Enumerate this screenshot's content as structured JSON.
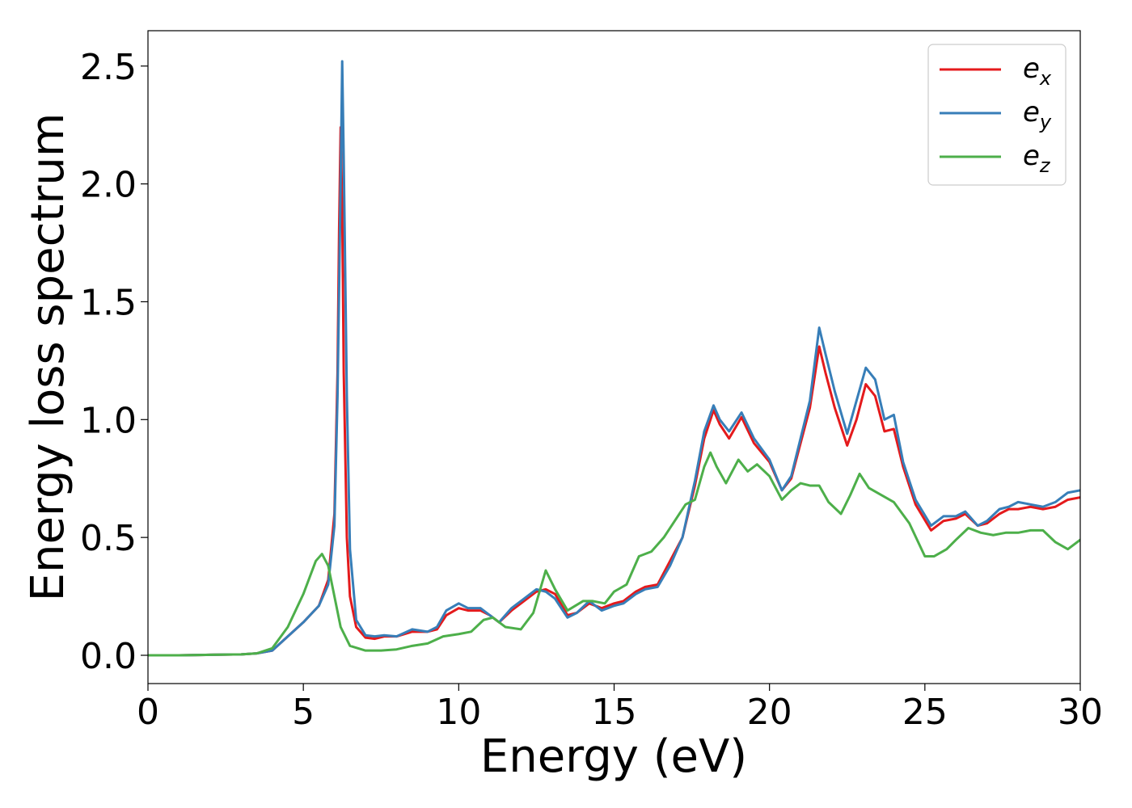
{
  "chart_data": {
    "type": "line",
    "xlabel": "Energy (eV)",
    "ylabel": "Energy loss spectrum",
    "xlim": [
      0,
      30
    ],
    "ylim": [
      -0.12,
      2.65
    ],
    "xticks": [
      0,
      5,
      10,
      15,
      20,
      25,
      30
    ],
    "yticks": [
      0.0,
      0.5,
      1.0,
      1.5,
      2.0,
      2.5
    ],
    "xtick_labels": [
      "0",
      "5",
      "10",
      "15",
      "20",
      "25",
      "30"
    ],
    "ytick_labels": [
      "0.0",
      "0.5",
      "1.0",
      "1.5",
      "2.0",
      "2.5"
    ],
    "grid": false,
    "legend_position": "top-right",
    "series": [
      {
        "name": "e_x",
        "label_base": "e",
        "label_sub": "x",
        "color": "#e41a1c",
        "points": [
          [
            0,
            0.0
          ],
          [
            1,
            0.0
          ],
          [
            2,
            0.002
          ],
          [
            3,
            0.004
          ],
          [
            3.5,
            0.008
          ],
          [
            4,
            0.02
          ],
          [
            4.5,
            0.08
          ],
          [
            5,
            0.14
          ],
          [
            5.5,
            0.21
          ],
          [
            5.8,
            0.32
          ],
          [
            6.0,
            0.6
          ],
          [
            6.1,
            1.2
          ],
          [
            6.15,
            1.8
          ],
          [
            6.2,
            2.24
          ],
          [
            6.25,
            1.9
          ],
          [
            6.3,
            1.2
          ],
          [
            6.4,
            0.5
          ],
          [
            6.5,
            0.25
          ],
          [
            6.7,
            0.12
          ],
          [
            7,
            0.075
          ],
          [
            7.3,
            0.07
          ],
          [
            7.6,
            0.08
          ],
          [
            8,
            0.08
          ],
          [
            8.5,
            0.1
          ],
          [
            9,
            0.1
          ],
          [
            9.3,
            0.11
          ],
          [
            9.6,
            0.17
          ],
          [
            10,
            0.2
          ],
          [
            10.3,
            0.19
          ],
          [
            10.7,
            0.19
          ],
          [
            11,
            0.17
          ],
          [
            11.3,
            0.14
          ],
          [
            11.7,
            0.19
          ],
          [
            12,
            0.22
          ],
          [
            12.5,
            0.27
          ],
          [
            12.8,
            0.28
          ],
          [
            13.1,
            0.26
          ],
          [
            13.5,
            0.17
          ],
          [
            13.8,
            0.18
          ],
          [
            14.2,
            0.22
          ],
          [
            14.6,
            0.2
          ],
          [
            15,
            0.22
          ],
          [
            15.3,
            0.23
          ],
          [
            15.7,
            0.27
          ],
          [
            16,
            0.29
          ],
          [
            16.4,
            0.3
          ],
          [
            16.8,
            0.4
          ],
          [
            17.2,
            0.5
          ],
          [
            17.6,
            0.72
          ],
          [
            17.9,
            0.92
          ],
          [
            18.2,
            1.04
          ],
          [
            18.4,
            0.98
          ],
          [
            18.7,
            0.92
          ],
          [
            19.1,
            1.01
          ],
          [
            19.5,
            0.9
          ],
          [
            20,
            0.82
          ],
          [
            20.4,
            0.7
          ],
          [
            20.7,
            0.75
          ],
          [
            21,
            0.9
          ],
          [
            21.3,
            1.05
          ],
          [
            21.6,
            1.31
          ],
          [
            21.8,
            1.2
          ],
          [
            22.1,
            1.05
          ],
          [
            22.5,
            0.89
          ],
          [
            22.8,
            1.0
          ],
          [
            23.1,
            1.15
          ],
          [
            23.4,
            1.1
          ],
          [
            23.7,
            0.95
          ],
          [
            24,
            0.96
          ],
          [
            24.3,
            0.8
          ],
          [
            24.7,
            0.64
          ],
          [
            25.2,
            0.53
          ],
          [
            25.6,
            0.57
          ],
          [
            26,
            0.58
          ],
          [
            26.3,
            0.6
          ],
          [
            26.7,
            0.55
          ],
          [
            27,
            0.56
          ],
          [
            27.4,
            0.6
          ],
          [
            27.7,
            0.62
          ],
          [
            28,
            0.62
          ],
          [
            28.4,
            0.63
          ],
          [
            28.8,
            0.62
          ],
          [
            29.2,
            0.63
          ],
          [
            29.6,
            0.66
          ],
          [
            30,
            0.67
          ]
        ]
      },
      {
        "name": "e_y",
        "label_base": "e",
        "label_sub": "y",
        "color": "#377eb8",
        "points": [
          [
            0,
            0.0
          ],
          [
            1,
            0.0
          ],
          [
            2,
            0.002
          ],
          [
            3,
            0.004
          ],
          [
            3.5,
            0.008
          ],
          [
            4,
            0.02
          ],
          [
            4.5,
            0.08
          ],
          [
            5,
            0.14
          ],
          [
            5.5,
            0.21
          ],
          [
            5.8,
            0.3
          ],
          [
            6.0,
            0.55
          ],
          [
            6.1,
            1.1
          ],
          [
            6.2,
            2.0
          ],
          [
            6.25,
            2.52
          ],
          [
            6.3,
            2.1
          ],
          [
            6.4,
            1.1
          ],
          [
            6.5,
            0.45
          ],
          [
            6.7,
            0.15
          ],
          [
            7,
            0.085
          ],
          [
            7.3,
            0.08
          ],
          [
            7.6,
            0.085
          ],
          [
            8,
            0.08
          ],
          [
            8.5,
            0.11
          ],
          [
            9,
            0.1
          ],
          [
            9.3,
            0.12
          ],
          [
            9.6,
            0.19
          ],
          [
            10,
            0.22
          ],
          [
            10.3,
            0.2
          ],
          [
            10.7,
            0.2
          ],
          [
            11,
            0.17
          ],
          [
            11.3,
            0.14
          ],
          [
            11.7,
            0.2
          ],
          [
            12,
            0.23
          ],
          [
            12.5,
            0.28
          ],
          [
            12.8,
            0.27
          ],
          [
            13.1,
            0.24
          ],
          [
            13.5,
            0.16
          ],
          [
            13.8,
            0.18
          ],
          [
            14.2,
            0.23
          ],
          [
            14.6,
            0.19
          ],
          [
            15,
            0.21
          ],
          [
            15.3,
            0.22
          ],
          [
            15.7,
            0.26
          ],
          [
            16,
            0.28
          ],
          [
            16.4,
            0.29
          ],
          [
            16.8,
            0.38
          ],
          [
            17.2,
            0.5
          ],
          [
            17.6,
            0.74
          ],
          [
            17.9,
            0.95
          ],
          [
            18.2,
            1.06
          ],
          [
            18.4,
            1.0
          ],
          [
            18.7,
            0.95
          ],
          [
            19.1,
            1.03
          ],
          [
            19.5,
            0.92
          ],
          [
            20,
            0.83
          ],
          [
            20.4,
            0.7
          ],
          [
            20.7,
            0.76
          ],
          [
            21,
            0.92
          ],
          [
            21.3,
            1.08
          ],
          [
            21.6,
            1.39
          ],
          [
            21.8,
            1.28
          ],
          [
            22.1,
            1.12
          ],
          [
            22.5,
            0.94
          ],
          [
            22.8,
            1.08
          ],
          [
            23.1,
            1.22
          ],
          [
            23.4,
            1.17
          ],
          [
            23.7,
            1.0
          ],
          [
            24,
            1.02
          ],
          [
            24.3,
            0.82
          ],
          [
            24.7,
            0.66
          ],
          [
            25.2,
            0.55
          ],
          [
            25.6,
            0.59
          ],
          [
            26,
            0.59
          ],
          [
            26.3,
            0.61
          ],
          [
            26.7,
            0.55
          ],
          [
            27,
            0.57
          ],
          [
            27.4,
            0.62
          ],
          [
            27.7,
            0.63
          ],
          [
            28,
            0.65
          ],
          [
            28.4,
            0.64
          ],
          [
            28.8,
            0.63
          ],
          [
            29.2,
            0.65
          ],
          [
            29.6,
            0.69
          ],
          [
            30,
            0.7
          ]
        ]
      },
      {
        "name": "e_z",
        "label_base": "e",
        "label_sub": "z",
        "color": "#4daf4a",
        "points": [
          [
            0,
            0.0
          ],
          [
            1,
            0.0
          ],
          [
            2,
            0.002
          ],
          [
            3,
            0.004
          ],
          [
            3.5,
            0.008
          ],
          [
            4,
            0.03
          ],
          [
            4.5,
            0.12
          ],
          [
            5,
            0.26
          ],
          [
            5.4,
            0.4
          ],
          [
            5.6,
            0.43
          ],
          [
            5.8,
            0.38
          ],
          [
            6.0,
            0.25
          ],
          [
            6.2,
            0.12
          ],
          [
            6.5,
            0.04
          ],
          [
            7,
            0.02
          ],
          [
            7.5,
            0.02
          ],
          [
            8,
            0.025
          ],
          [
            8.5,
            0.04
          ],
          [
            9,
            0.05
          ],
          [
            9.5,
            0.08
          ],
          [
            10,
            0.09
          ],
          [
            10.4,
            0.1
          ],
          [
            10.8,
            0.15
          ],
          [
            11.1,
            0.16
          ],
          [
            11.5,
            0.12
          ],
          [
            12,
            0.11
          ],
          [
            12.4,
            0.18
          ],
          [
            12.8,
            0.36
          ],
          [
            13.1,
            0.28
          ],
          [
            13.5,
            0.19
          ],
          [
            14,
            0.23
          ],
          [
            14.3,
            0.23
          ],
          [
            14.7,
            0.22
          ],
          [
            15,
            0.27
          ],
          [
            15.4,
            0.3
          ],
          [
            15.8,
            0.42
          ],
          [
            16.2,
            0.44
          ],
          [
            16.6,
            0.5
          ],
          [
            17,
            0.58
          ],
          [
            17.3,
            0.64
          ],
          [
            17.6,
            0.66
          ],
          [
            17.9,
            0.8
          ],
          [
            18.1,
            0.86
          ],
          [
            18.3,
            0.8
          ],
          [
            18.6,
            0.73
          ],
          [
            19,
            0.83
          ],
          [
            19.3,
            0.78
          ],
          [
            19.6,
            0.81
          ],
          [
            20,
            0.76
          ],
          [
            20.4,
            0.66
          ],
          [
            20.7,
            0.7
          ],
          [
            21,
            0.73
          ],
          [
            21.3,
            0.72
          ],
          [
            21.6,
            0.72
          ],
          [
            21.9,
            0.65
          ],
          [
            22.3,
            0.6
          ],
          [
            22.6,
            0.68
          ],
          [
            22.9,
            0.77
          ],
          [
            23.2,
            0.71
          ],
          [
            23.6,
            0.68
          ],
          [
            24,
            0.65
          ],
          [
            24.5,
            0.56
          ],
          [
            25,
            0.42
          ],
          [
            25.3,
            0.42
          ],
          [
            25.7,
            0.45
          ],
          [
            26,
            0.49
          ],
          [
            26.4,
            0.54
          ],
          [
            26.8,
            0.52
          ],
          [
            27.2,
            0.51
          ],
          [
            27.6,
            0.52
          ],
          [
            28,
            0.52
          ],
          [
            28.4,
            0.53
          ],
          [
            28.8,
            0.53
          ],
          [
            29.2,
            0.48
          ],
          [
            29.6,
            0.45
          ],
          [
            30,
            0.49
          ]
        ]
      }
    ]
  }
}
